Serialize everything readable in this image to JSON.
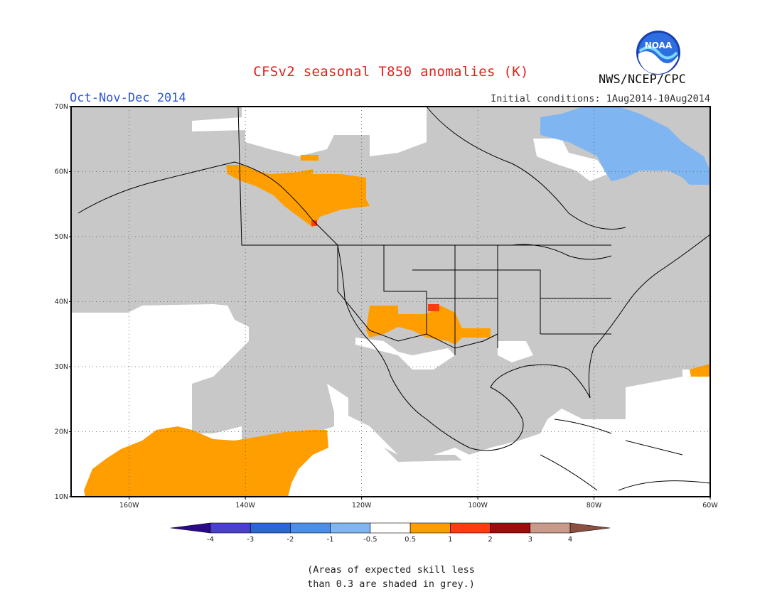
{
  "header": {
    "title": "CFSv2 seasonal T850 anomalies (K)",
    "period": "Oct-Nov-Dec 2014",
    "initial_conditions": "Initial conditions: 1Aug2014-10Aug2014",
    "agency": "NWS/NCEP/CPC",
    "logo_text": "NOAA"
  },
  "map": {
    "lon_range": [
      -170,
      -60
    ],
    "lat_range": [
      10,
      70
    ],
    "lat_labels": [
      "10N",
      "20N",
      "30N",
      "40N",
      "50N",
      "60N",
      "70N"
    ],
    "lon_labels": [
      "160W",
      "140W",
      "120W",
      "100W",
      "80W",
      "60W"
    ],
    "colors": {
      "grey": "#c8c8c8",
      "land_line": "#000000",
      "grid": "#555555"
    }
  },
  "colorbar": {
    "labels": [
      "-4",
      "-3",
      "-2",
      "-1",
      "-0.5",
      "0.5",
      "1",
      "2",
      "3",
      "4"
    ],
    "colors": [
      "#2a0a8a",
      "#4a3fcf",
      "#2b66d6",
      "#4a8ee8",
      "#7fb6f2",
      "#ffffff",
      "#ff9e00",
      "#ff3b10",
      "#a00c0c",
      "#c89a8a",
      "#8a5040"
    ]
  },
  "note": {
    "line1": "(Areas of expected skill less",
    "line2": "than 0.3 are shaded in grey.)"
  }
}
